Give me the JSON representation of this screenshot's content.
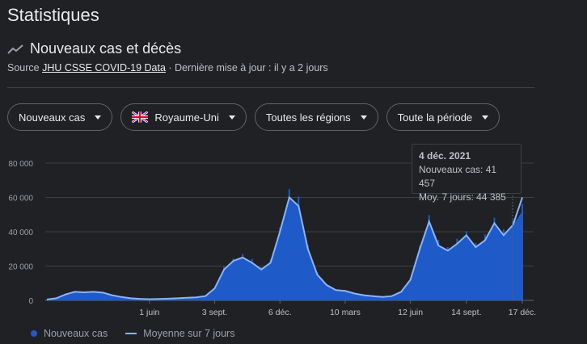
{
  "page": {
    "title": "Statistiques"
  },
  "card": {
    "heading": "Nouveaux cas et décès",
    "source_prefix": "Source ",
    "source_link": "JHU CSSE COVID-19 Data",
    "updated": " · Dernière mise à jour : il y a 2 jours"
  },
  "filters": {
    "metric": "Nouveaux cas",
    "country": "Royaume-Uni",
    "region": "Toutes les régions",
    "period": "Toute la période"
  },
  "tooltip": {
    "date": "4 déc. 2021",
    "cases_line": "Nouveaux cas: 41 457",
    "avg_line": "Moy. 7 jours: 44 385"
  },
  "legend": {
    "cases": "Nouveaux cas",
    "avg": "Moyenne sur 7 jours"
  },
  "colors": {
    "bars": "#1e5ac8",
    "avg_line": "#8ab4f8",
    "background": "#202124"
  },
  "icons": {
    "trend": "trending-line-icon",
    "flag": "uk-flag-icon",
    "caret": "caret-down-icon"
  },
  "chart_data": {
    "type": "bar",
    "y_ticks": [
      "0",
      "20 000",
      "40 000",
      "60 000",
      "80 000"
    ],
    "ylim": [
      0,
      80000
    ],
    "x_ticks": [
      "1 juin",
      "3 sept.",
      "6 déc.",
      "10 mars",
      "12 juin",
      "14 sept.",
      "17 déc."
    ],
    "x_tick_index": [
      11,
      18,
      25,
      32,
      39,
      45,
      51
    ],
    "series": [
      {
        "name": "Nouveaux cas",
        "values": [
          500,
          1200,
          3500,
          5000,
          4700,
          5000,
          4500,
          3000,
          2000,
          1200,
          900,
          700,
          800,
          1000,
          1200,
          1500,
          1800,
          2500,
          7000,
          18000,
          23000,
          25000,
          22000,
          18000,
          22000,
          40000,
          60000,
          55000,
          30000,
          15000,
          9000,
          6000,
          5500,
          4000,
          3000,
          2500,
          2000,
          2500,
          5000,
          12000,
          30000,
          46000,
          32000,
          29000,
          33000,
          38000,
          31000,
          35000,
          45000,
          38000,
          44000,
          52000
        ]
      },
      {
        "name": "Moyenne sur 7 jours",
        "values": [
          500,
          1200,
          3500,
          5000,
          4700,
          5000,
          4500,
          3000,
          2000,
          1200,
          900,
          700,
          800,
          1000,
          1200,
          1500,
          1800,
          2500,
          7000,
          18000,
          23000,
          25000,
          22000,
          18000,
          22000,
          40000,
          60000,
          55000,
          30000,
          15000,
          9000,
          6000,
          5500,
          4000,
          3000,
          2500,
          2000,
          2500,
          5000,
          12000,
          30000,
          46000,
          32000,
          29000,
          33000,
          38000,
          31000,
          35000,
          45000,
          38000,
          44000,
          60000
        ]
      }
    ]
  }
}
